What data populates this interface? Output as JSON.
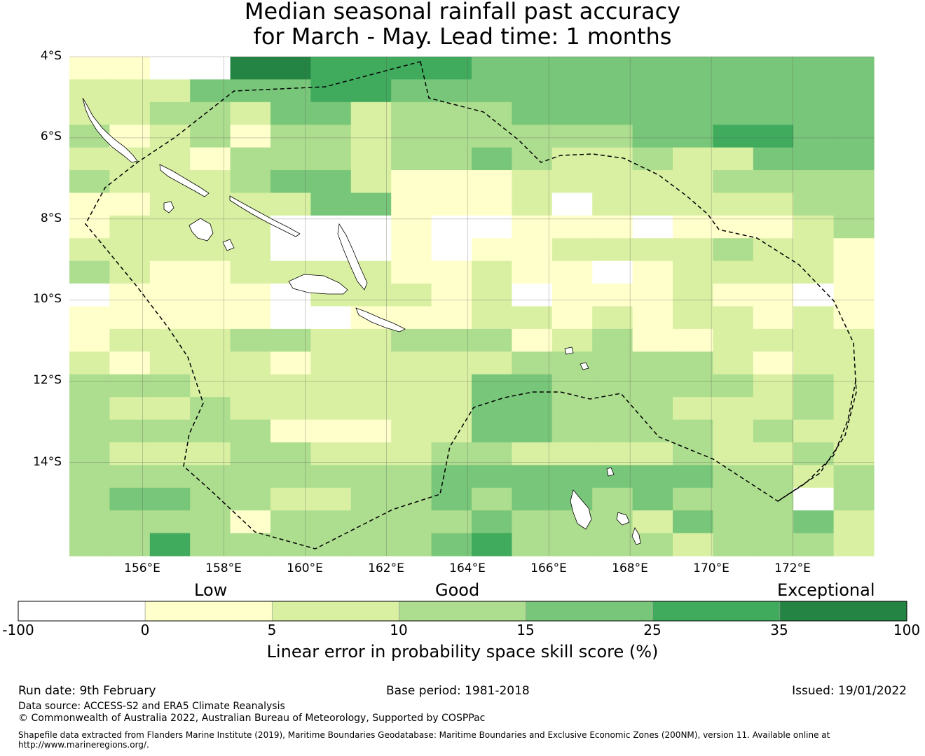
{
  "title": {
    "line1": "Median seasonal rainfall past accuracy",
    "line2": "for March - May. Lead time: 1 months"
  },
  "map": {
    "lat_labels": [
      "4°S",
      "6°S",
      "8°S",
      "10°S",
      "12°S",
      "14°S"
    ],
    "lon_labels": [
      "156°E",
      "158°E",
      "160°E",
      "162°E",
      "164°E",
      "166°E",
      "168°E",
      "170°E",
      "172°E"
    ],
    "extent": {
      "lon_min": 154.2,
      "lon_max": 174.0,
      "lat_top": -4.0,
      "lat_bottom": -16.3
    },
    "grid_levels": [
      "11006655554444444444",
      "22244455444444444444",
      "22332442333444444444",
      "31231332333333445544",
      "22213332334322322444",
      "32223442111222223333",
      "11222244111202222233",
      "12222000100111011123",
      "22222000101122223221",
      "32112222112110122221",
      "01111022212011121101",
      "11111001112212122121",
      "12223322333123112222",
      "21222122222333332122",
      "33322222224433333232",
      "32232222224433322232",
      "33333111224433332322",
      "32223322233222232232",
      "33333333344444443323",
      "34433223343443433303",
      "33331333334333243342",
      "33533333345333323332"
    ]
  },
  "colorbar": {
    "category_labels": [
      "Low",
      "Good",
      "Exceptional"
    ],
    "tick_labels": [
      "-100",
      "0",
      "5",
      "10",
      "15",
      "25",
      "35",
      "100"
    ],
    "colors": [
      "#ffffff",
      "#ffffcc",
      "#d9f0a3",
      "#addd8e",
      "#78c679",
      "#41ab5d",
      "#238443"
    ],
    "label": "Linear error in probability space skill score (%)"
  },
  "footer": {
    "run_date": "Run date: 9th February",
    "base_period": "Base period: 1981-2018",
    "issued": "Issued: 19/01/2022",
    "data_source": "Data source: ACCESS-S2 and ERA5 Climate Reanalysis",
    "copyright": "© Commonwealth of Australia 2022, Australian Bureau of Meteorology, Supported by COSPPac",
    "shapefile_line1": "Shapefile data extracted from Flanders Marine Institute (2019), Maritime Boundaries Geodatabase: Maritime Boundaries and Exclusive Economic Zones (200NM), version 11. Available online at",
    "shapefile_line2": "http://www.marineregions.org/."
  }
}
